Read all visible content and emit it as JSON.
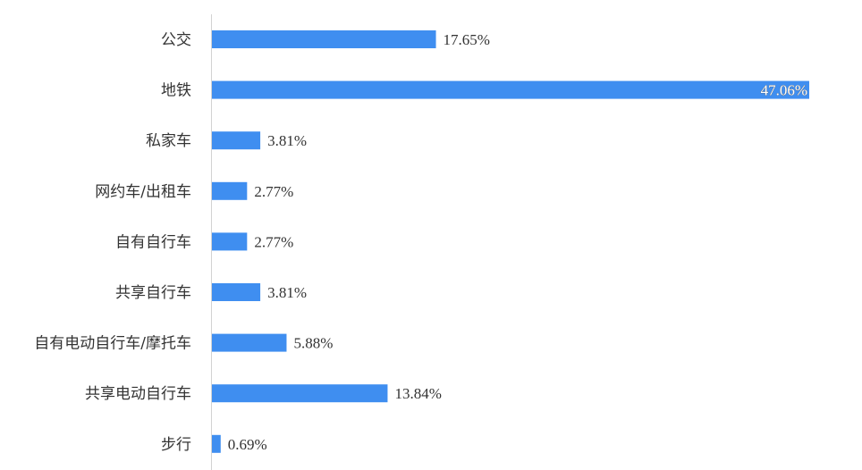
{
  "chart_data": {
    "type": "bar",
    "orientation": "horizontal",
    "categories": [
      "公交",
      "地铁",
      "私家车",
      "网约车/出租车",
      "自有自行车",
      "共享自行车",
      "自有电动自行车/摩托车",
      "共享电动自行车",
      "步行"
    ],
    "values": [
      17.65,
      47.06,
      3.81,
      2.77,
      2.77,
      3.81,
      5.88,
      13.84,
      0.69
    ],
    "value_labels": [
      "17.65%",
      "47.06%",
      "3.81%",
      "2.77%",
      "2.77%",
      "3.81%",
      "5.88%",
      "13.84%",
      "0.69%"
    ],
    "unit": "%",
    "title": "",
    "xlabel": "",
    "ylabel": "",
    "xlim": [
      0,
      47.06
    ],
    "grid": false,
    "legend": "none",
    "bar_color": "#3f8ef0",
    "axis_color": "#d3d3d3"
  }
}
